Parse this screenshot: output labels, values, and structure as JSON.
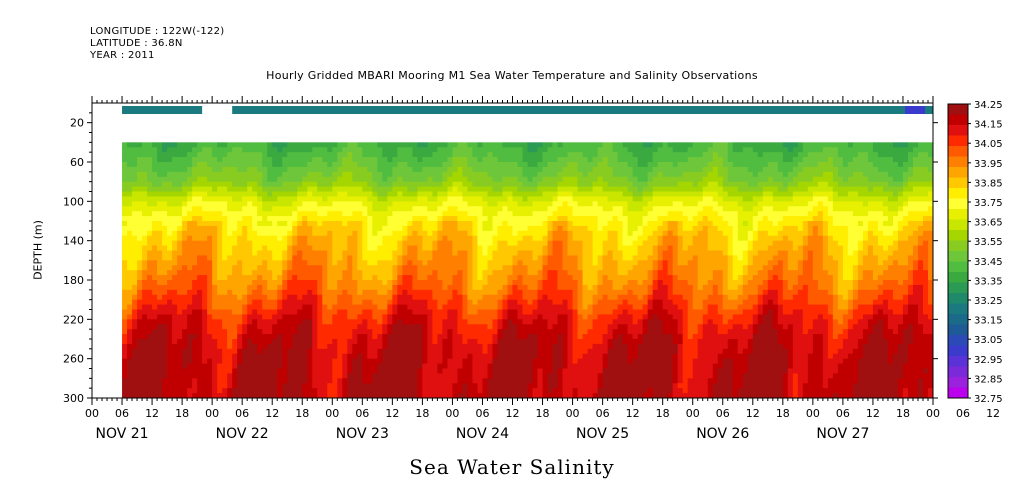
{
  "header": {
    "longitude": "LONGITUDE : 122W(-122)",
    "latitude": "LATITUDE : 36.8N",
    "year": "YEAR : 2011"
  },
  "caption": "Sea Water Salinity",
  "chart_data": {
    "type": "heatmap",
    "title": "Hourly Gridded MBARI Mooring M1 Sea Water Temperature and Salinity Observations",
    "ylabel": "DEPTH (m)",
    "xlabel": "",
    "ylim": [
      300,
      0
    ],
    "y_ticks": [
      20,
      60,
      100,
      140,
      180,
      220,
      260,
      300
    ],
    "x_hour_ticks": [
      "00",
      "06",
      "12",
      "18",
      "00",
      "06",
      "12",
      "18",
      "00",
      "06",
      "12",
      "18",
      "00",
      "06",
      "12",
      "18",
      "00",
      "06",
      "12",
      "18",
      "00",
      "06",
      "12",
      "18",
      "00",
      "06",
      "12",
      "18",
      "00",
      "06",
      "12",
      "18"
    ],
    "x_day_labels": [
      "NOV 21",
      "NOV 22",
      "NOV 23",
      "NOV 24",
      "NOV 25",
      "NOV 26",
      "NOV 27"
    ],
    "data_start_hour": 6,
    "data_end_hour": 168,
    "surface_gap_hours": [
      22,
      28
    ],
    "surface_salinity": 33.2,
    "depth_profile": [
      {
        "depth": 40,
        "salinity": 33.38
      },
      {
        "depth": 60,
        "salinity": 33.45
      },
      {
        "depth": 80,
        "salinity": 33.52
      },
      {
        "depth": 100,
        "salinity": 33.68
      },
      {
        "depth": 120,
        "salinity": 33.78
      },
      {
        "depth": 140,
        "salinity": 33.85
      },
      {
        "depth": 160,
        "salinity": 33.9
      },
      {
        "depth": 180,
        "salinity": 33.95
      },
      {
        "depth": 200,
        "salinity": 34.02
      },
      {
        "depth": 220,
        "salinity": 34.1
      },
      {
        "depth": 240,
        "salinity": 34.15
      },
      {
        "depth": 260,
        "salinity": 34.18
      },
      {
        "depth": 300,
        "salinity": 34.2
      }
    ],
    "colorbar": {
      "labels": [
        "34.25",
        "34.15",
        "34.05",
        "33.95",
        "33.85",
        "33.75",
        "33.65",
        "33.55",
        "33.45",
        "33.35",
        "33.25",
        "33.15",
        "33.05",
        "32.95",
        "32.85",
        "32.75"
      ],
      "colors": [
        "#a01010",
        "#c00000",
        "#e01010",
        "#ff2a00",
        "#ff5a00",
        "#ff8000",
        "#ffa500",
        "#ffc800",
        "#ffee00",
        "#ffff33",
        "#e6f000",
        "#c8e600",
        "#a5d600",
        "#88cc22",
        "#6ec63a",
        "#50bd40",
        "#3aaa40",
        "#2a9a55",
        "#1f8a6a",
        "#1a7a80",
        "#1a6a8a",
        "#1e5a95",
        "#2c4ab5",
        "#3a3acc",
        "#5a32d8",
        "#7a2ad8",
        "#9a22dc",
        "#bb00ee"
      ]
    }
  }
}
